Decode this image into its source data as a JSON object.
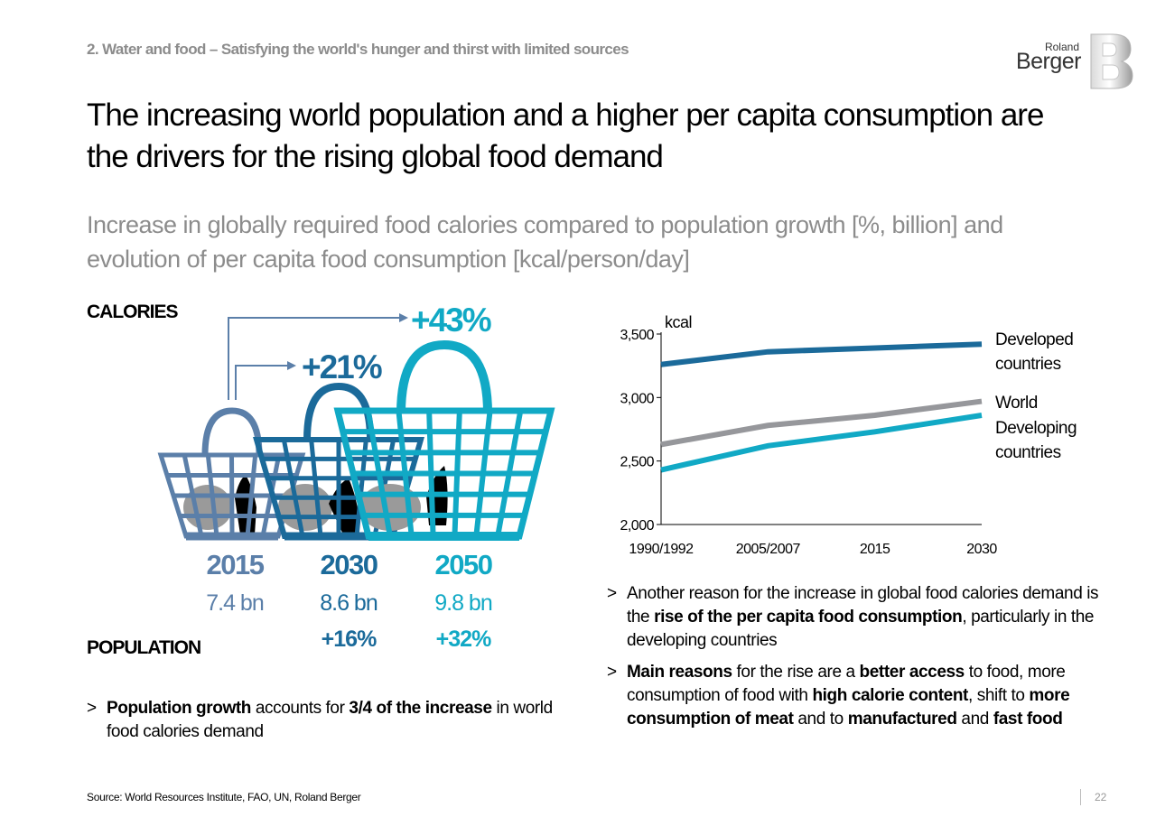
{
  "header": {
    "section": "2. Water and food – Satisfying the world's hunger and thirst with limited sources",
    "logo_top": "Roland",
    "logo_bottom": "Berger",
    "logo_letter": "B"
  },
  "title": "The increasing world population and a higher per capita consumption are the drivers for the rising global food demand",
  "subtitle": "Increase in globally required food calories compared to population growth [%, billion] and evolution of per capita food consumption [kcal/person/day]",
  "colors": {
    "c2015": "#5b7fa9",
    "c2030": "#1b6a9a",
    "c2050": "#11a9c5",
    "developed": "#1b6a9a",
    "world": "#96979b",
    "developing": "#11a9c5"
  },
  "left_panel": {
    "calories_label": "CALORIES",
    "population_label": "POPULATION",
    "bullet_marker": ">",
    "bullet_parts": [
      {
        "text": "Population growth",
        "bold": true
      },
      {
        "text": " accounts for ",
        "bold": false
      },
      {
        "text": "3/4 of the increase",
        "bold": true
      },
      {
        "text": " in world food calories demand",
        "bold": false
      }
    ]
  },
  "chart_data": [
    {
      "type": "bar",
      "categories": [
        "2015",
        "2030",
        "2050"
      ],
      "calorie_increase_labels": [
        "+21%",
        "+43%"
      ],
      "calorie_increase_percent": [
        21,
        43
      ],
      "population_labels": [
        "7.4 bn",
        "8.6 bn",
        "9.8 bn"
      ],
      "population_bn": [
        7.4,
        8.6,
        9.8
      ],
      "population_growth_labels": [
        "",
        "+16%",
        "+32%"
      ],
      "population_growth_percent": [
        null,
        16,
        32
      ],
      "icons": [
        "basket-icon",
        "basket-icon",
        "basket-icon"
      ]
    },
    {
      "type": "line",
      "ylabel": "kcal",
      "x": [
        "1990/1992",
        "2005/2007",
        "2015",
        "2030"
      ],
      "ylim": [
        2000,
        3500
      ],
      "yticks": [
        2000,
        2500,
        3000,
        3500
      ],
      "ytick_labels": [
        "2,000",
        "2,500",
        "3,000",
        "3,500"
      ],
      "grid": false,
      "series": [
        {
          "name": "Developed countries",
          "values": [
            3260,
            3360,
            3390,
            3420
          ],
          "color": "#1b6a9a"
        },
        {
          "name": "World",
          "values": [
            2630,
            2780,
            2860,
            2970
          ],
          "color": "#96979b"
        },
        {
          "name": "Developing countries",
          "values": [
            2430,
            2620,
            2730,
            2860
          ],
          "color": "#11a9c5"
        }
      ],
      "legend_labels": [
        [
          "Developed",
          "countries"
        ],
        [
          "World"
        ],
        [
          "Developing",
          "countries"
        ]
      ]
    }
  ],
  "right_panel": {
    "bullet_marker": ">",
    "bullet1_parts": [
      {
        "text": "Another reason for the increase in global food calories demand is the ",
        "bold": false
      },
      {
        "text": "rise of the per capita food consumption",
        "bold": true
      },
      {
        "text": ", particularly in the developing countries",
        "bold": false
      }
    ],
    "bullet2_parts": [
      {
        "text": "Main reasons",
        "bold": true
      },
      {
        "text": " for the rise are a ",
        "bold": false
      },
      {
        "text": "better access",
        "bold": true
      },
      {
        "text": " to food, more consumption of food with ",
        "bold": false
      },
      {
        "text": "high calorie content",
        "bold": true
      },
      {
        "text": ", shift to ",
        "bold": false
      },
      {
        "text": "more consumption of meat",
        "bold": true
      },
      {
        "text": " and to ",
        "bold": false
      },
      {
        "text": "manufactured",
        "bold": true
      },
      {
        "text": " and ",
        "bold": false
      },
      {
        "text": "fast food",
        "bold": true
      }
    ]
  },
  "footer": {
    "source": "Source: World Resources Institute, FAO, UN, Roland Berger",
    "page_number": "22"
  }
}
